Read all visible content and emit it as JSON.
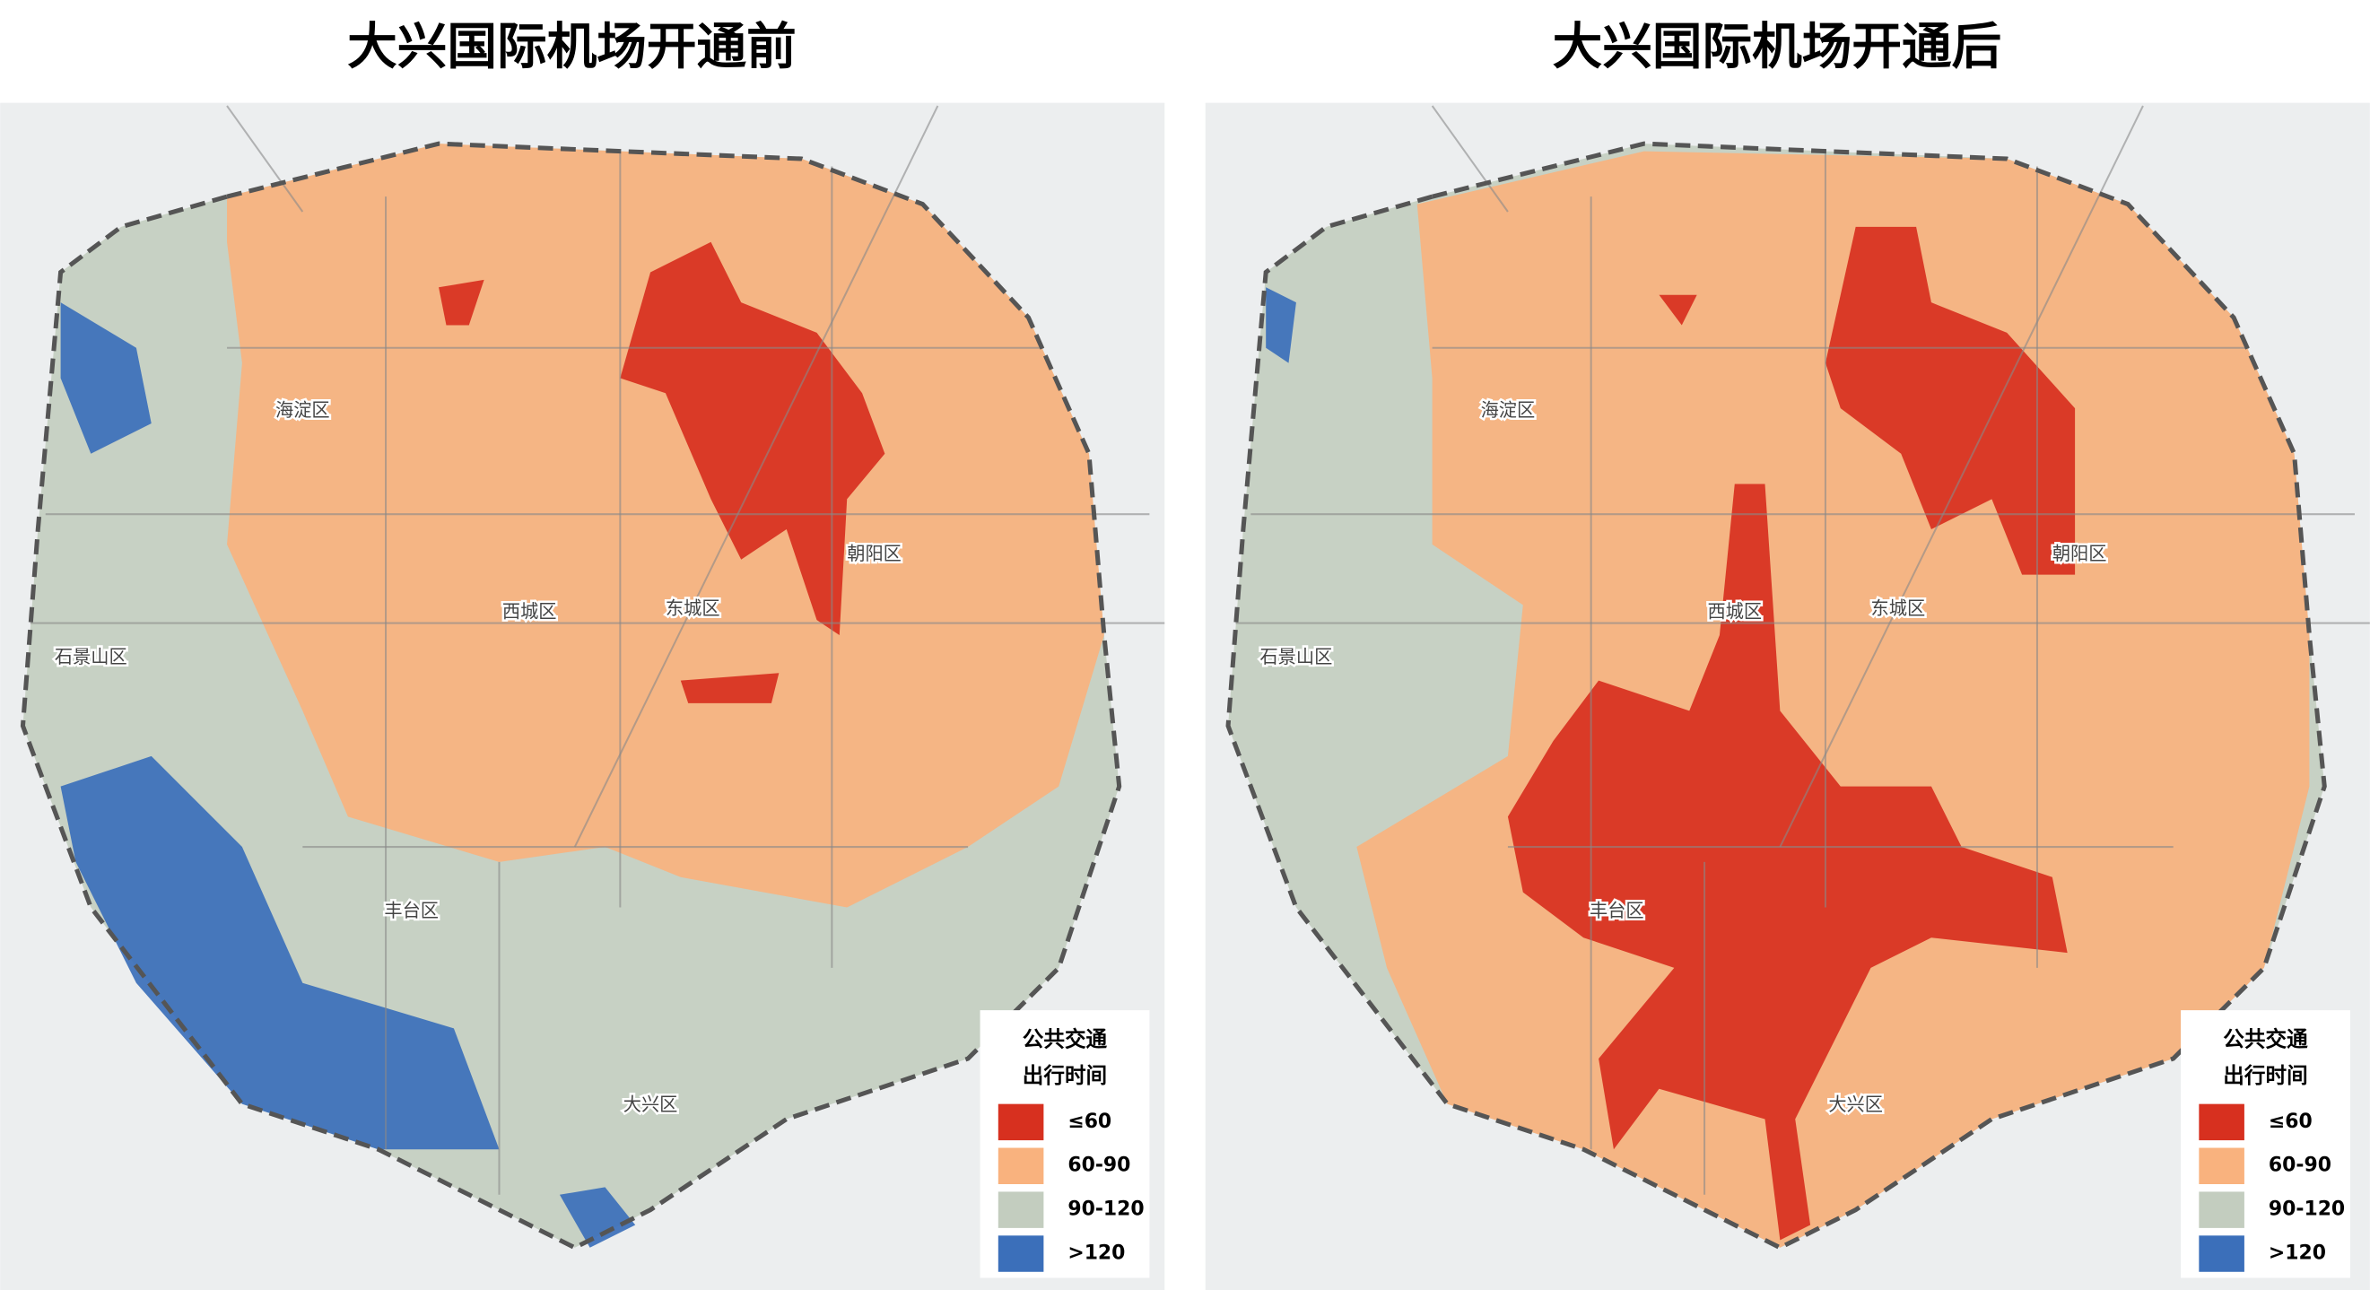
{
  "maps": [
    {
      "title": "大兴国际机场开通前",
      "districts": [
        "海淀区",
        "西城区",
        "东城区",
        "朝阳区",
        "石景山区",
        "丰台区",
        "大兴区"
      ]
    },
    {
      "title": "大兴国际机场开通后",
      "districts": [
        "海淀区",
        "西城区",
        "东城区",
        "朝阳区",
        "石景山区",
        "丰台区",
        "大兴区"
      ]
    }
  ],
  "legend": {
    "title": [
      "公共交通",
      "出行时间"
    ],
    "items": [
      {
        "label": "≤60",
        "color": "#d7301f"
      },
      {
        "label": "60-90",
        "color": "#f9b27e"
      },
      {
        "label": "90-120",
        "color": "#c3cdbf"
      },
      {
        "label": ">120",
        "color": "#3b6fba"
      }
    ]
  }
}
